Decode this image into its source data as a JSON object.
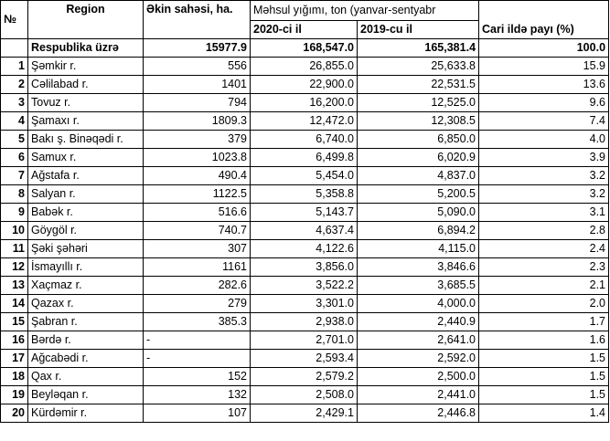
{
  "headers": {
    "no": "№",
    "region": "Region",
    "area": "Əkin sahəsi, ha.",
    "harvest_group": "Məhsul yığımı, ton (yanvar-sentyabr",
    "year_2020": "2020-ci il",
    "year_2019": "2019-cu il",
    "share": "Cari ildə payı (%)"
  },
  "total": {
    "region": "Respublika üzrə",
    "area": "15977.9",
    "y2020": "168,547.0",
    "y2019": "165,381.4",
    "share": "100.0"
  },
  "rows": [
    {
      "no": "1",
      "region": "Şəmkir r.",
      "area": "556",
      "y2020": "26,855.0",
      "y2019": "25,633.8",
      "share": "15.9"
    },
    {
      "no": "2",
      "region": "Cəlilabad r.",
      "area": "1401",
      "y2020": "22,900.0",
      "y2019": "22,531.5",
      "share": "13.6"
    },
    {
      "no": "3",
      "region": "Tovuz r.",
      "area": "794",
      "y2020": "16,200.0",
      "y2019": "12,525.0",
      "share": "9.6"
    },
    {
      "no": "4",
      "region": "Şamaxı r.",
      "area": "1809.3",
      "y2020": "12,472.0",
      "y2019": "12,308.5",
      "share": "7.4"
    },
    {
      "no": "5",
      "region": "Bakı ş. Binəqədi r.",
      "area": "379",
      "y2020": "6,740.0",
      "y2019": "6,850.0",
      "share": "4.0"
    },
    {
      "no": "6",
      "region": "Samux r.",
      "area": "1023.8",
      "y2020": "6,499.8",
      "y2019": "6,020.9",
      "share": "3.9"
    },
    {
      "no": "7",
      "region": "Ağstafa r.",
      "area": "490.4",
      "y2020": "5,454.0",
      "y2019": "4,837.0",
      "share": "3.2"
    },
    {
      "no": "8",
      "region": "Salyan r.",
      "area": "1122.5",
      "y2020": "5,358.8",
      "y2019": "5,200.5",
      "share": "3.2"
    },
    {
      "no": "9",
      "region": "Babək r.",
      "area": "516.6",
      "y2020": "5,143.7",
      "y2019": "5,090.0",
      "share": "3.1"
    },
    {
      "no": "10",
      "region": "Göygöl r.",
      "area": "740.7",
      "y2020": "4,637.4",
      "y2019": "6,894.2",
      "share": "2.8"
    },
    {
      "no": "11",
      "region": "Şəki şəhəri",
      "area": "307",
      "y2020": "4,122.6",
      "y2019": "4,115.0",
      "share": "2.4"
    },
    {
      "no": "12",
      "region": "İsmayıllı r.",
      "area": "1161",
      "y2020": "3,856.0",
      "y2019": "3,846.6",
      "share": "2.3"
    },
    {
      "no": "13",
      "region": "Xaçmaz r.",
      "area": "282.6",
      "y2020": "3,522.2",
      "y2019": "3,685.5",
      "share": "2.1"
    },
    {
      "no": "14",
      "region": "Qazax r.",
      "area": "279",
      "y2020": "3,301.0",
      "y2019": "4,000.0",
      "share": "2.0"
    },
    {
      "no": "15",
      "region": "Şabran r.",
      "area": "385.3",
      "y2020": "2,938.0",
      "y2019": "2,440.9",
      "share": "1.7"
    },
    {
      "no": "16",
      "region": "Bərdə r.",
      "area": "-",
      "y2020": "2,701.0",
      "y2019": "2,641.0",
      "share": "1.6"
    },
    {
      "no": "17",
      "region": "Ağcabədi r.",
      "area": "-",
      "y2020": "2,593.4",
      "y2019": "2,592.0",
      "share": "1.5"
    },
    {
      "no": "18",
      "region": "Qax r.",
      "area": "152",
      "y2020": "2,579.2",
      "y2019": "2,500.0",
      "share": "1.5"
    },
    {
      "no": "19",
      "region": "Beyləqan r.",
      "area": "132",
      "y2020": "2,508.0",
      "y2019": "2,441.0",
      "share": "1.5"
    },
    {
      "no": "20",
      "region": "Kürdəmir r.",
      "area": "107",
      "y2020": "2,429.1",
      "y2019": "2,446.8",
      "share": "1.4"
    }
  ]
}
